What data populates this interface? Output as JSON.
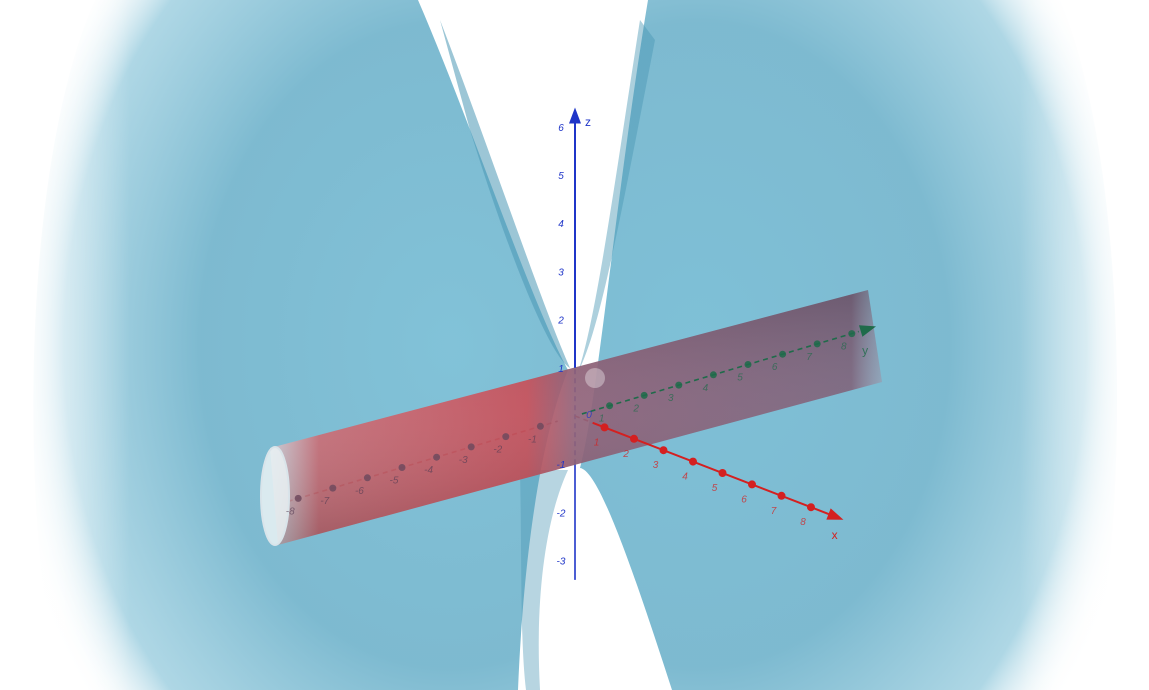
{
  "view": {
    "colors": {
      "background": "#ffffff",
      "hyperboloid_surface": "#6fb8d2",
      "hyperboloid_shade": "#4a97b4",
      "cylinder_surface": "#c8454f",
      "cylinder_overlap": "#7a5f78",
      "x_axis": "#d42020",
      "y_axis": "#1f6b4a",
      "z_axis": "#1f35c8"
    }
  },
  "axes": {
    "x": {
      "name": "x",
      "color": "#d42020",
      "shown_labels": [
        "1",
        "2",
        "3",
        "4",
        "5",
        "6",
        "7",
        "8"
      ]
    },
    "y": {
      "name": "y",
      "color": "#1f6b4a",
      "shown_labels": [
        "-8",
        "-7",
        "-6",
        "-5",
        "-4",
        "-3",
        "-2",
        "-1",
        "1",
        "2",
        "3",
        "4",
        "5",
        "6",
        "7",
        "8"
      ]
    },
    "z": {
      "name": "z",
      "color": "#1f35c8",
      "shown_labels": [
        "-3",
        "-2",
        "-1",
        "1",
        "2",
        "3",
        "4",
        "5",
        "6"
      ]
    },
    "origin_label": "0"
  }
}
